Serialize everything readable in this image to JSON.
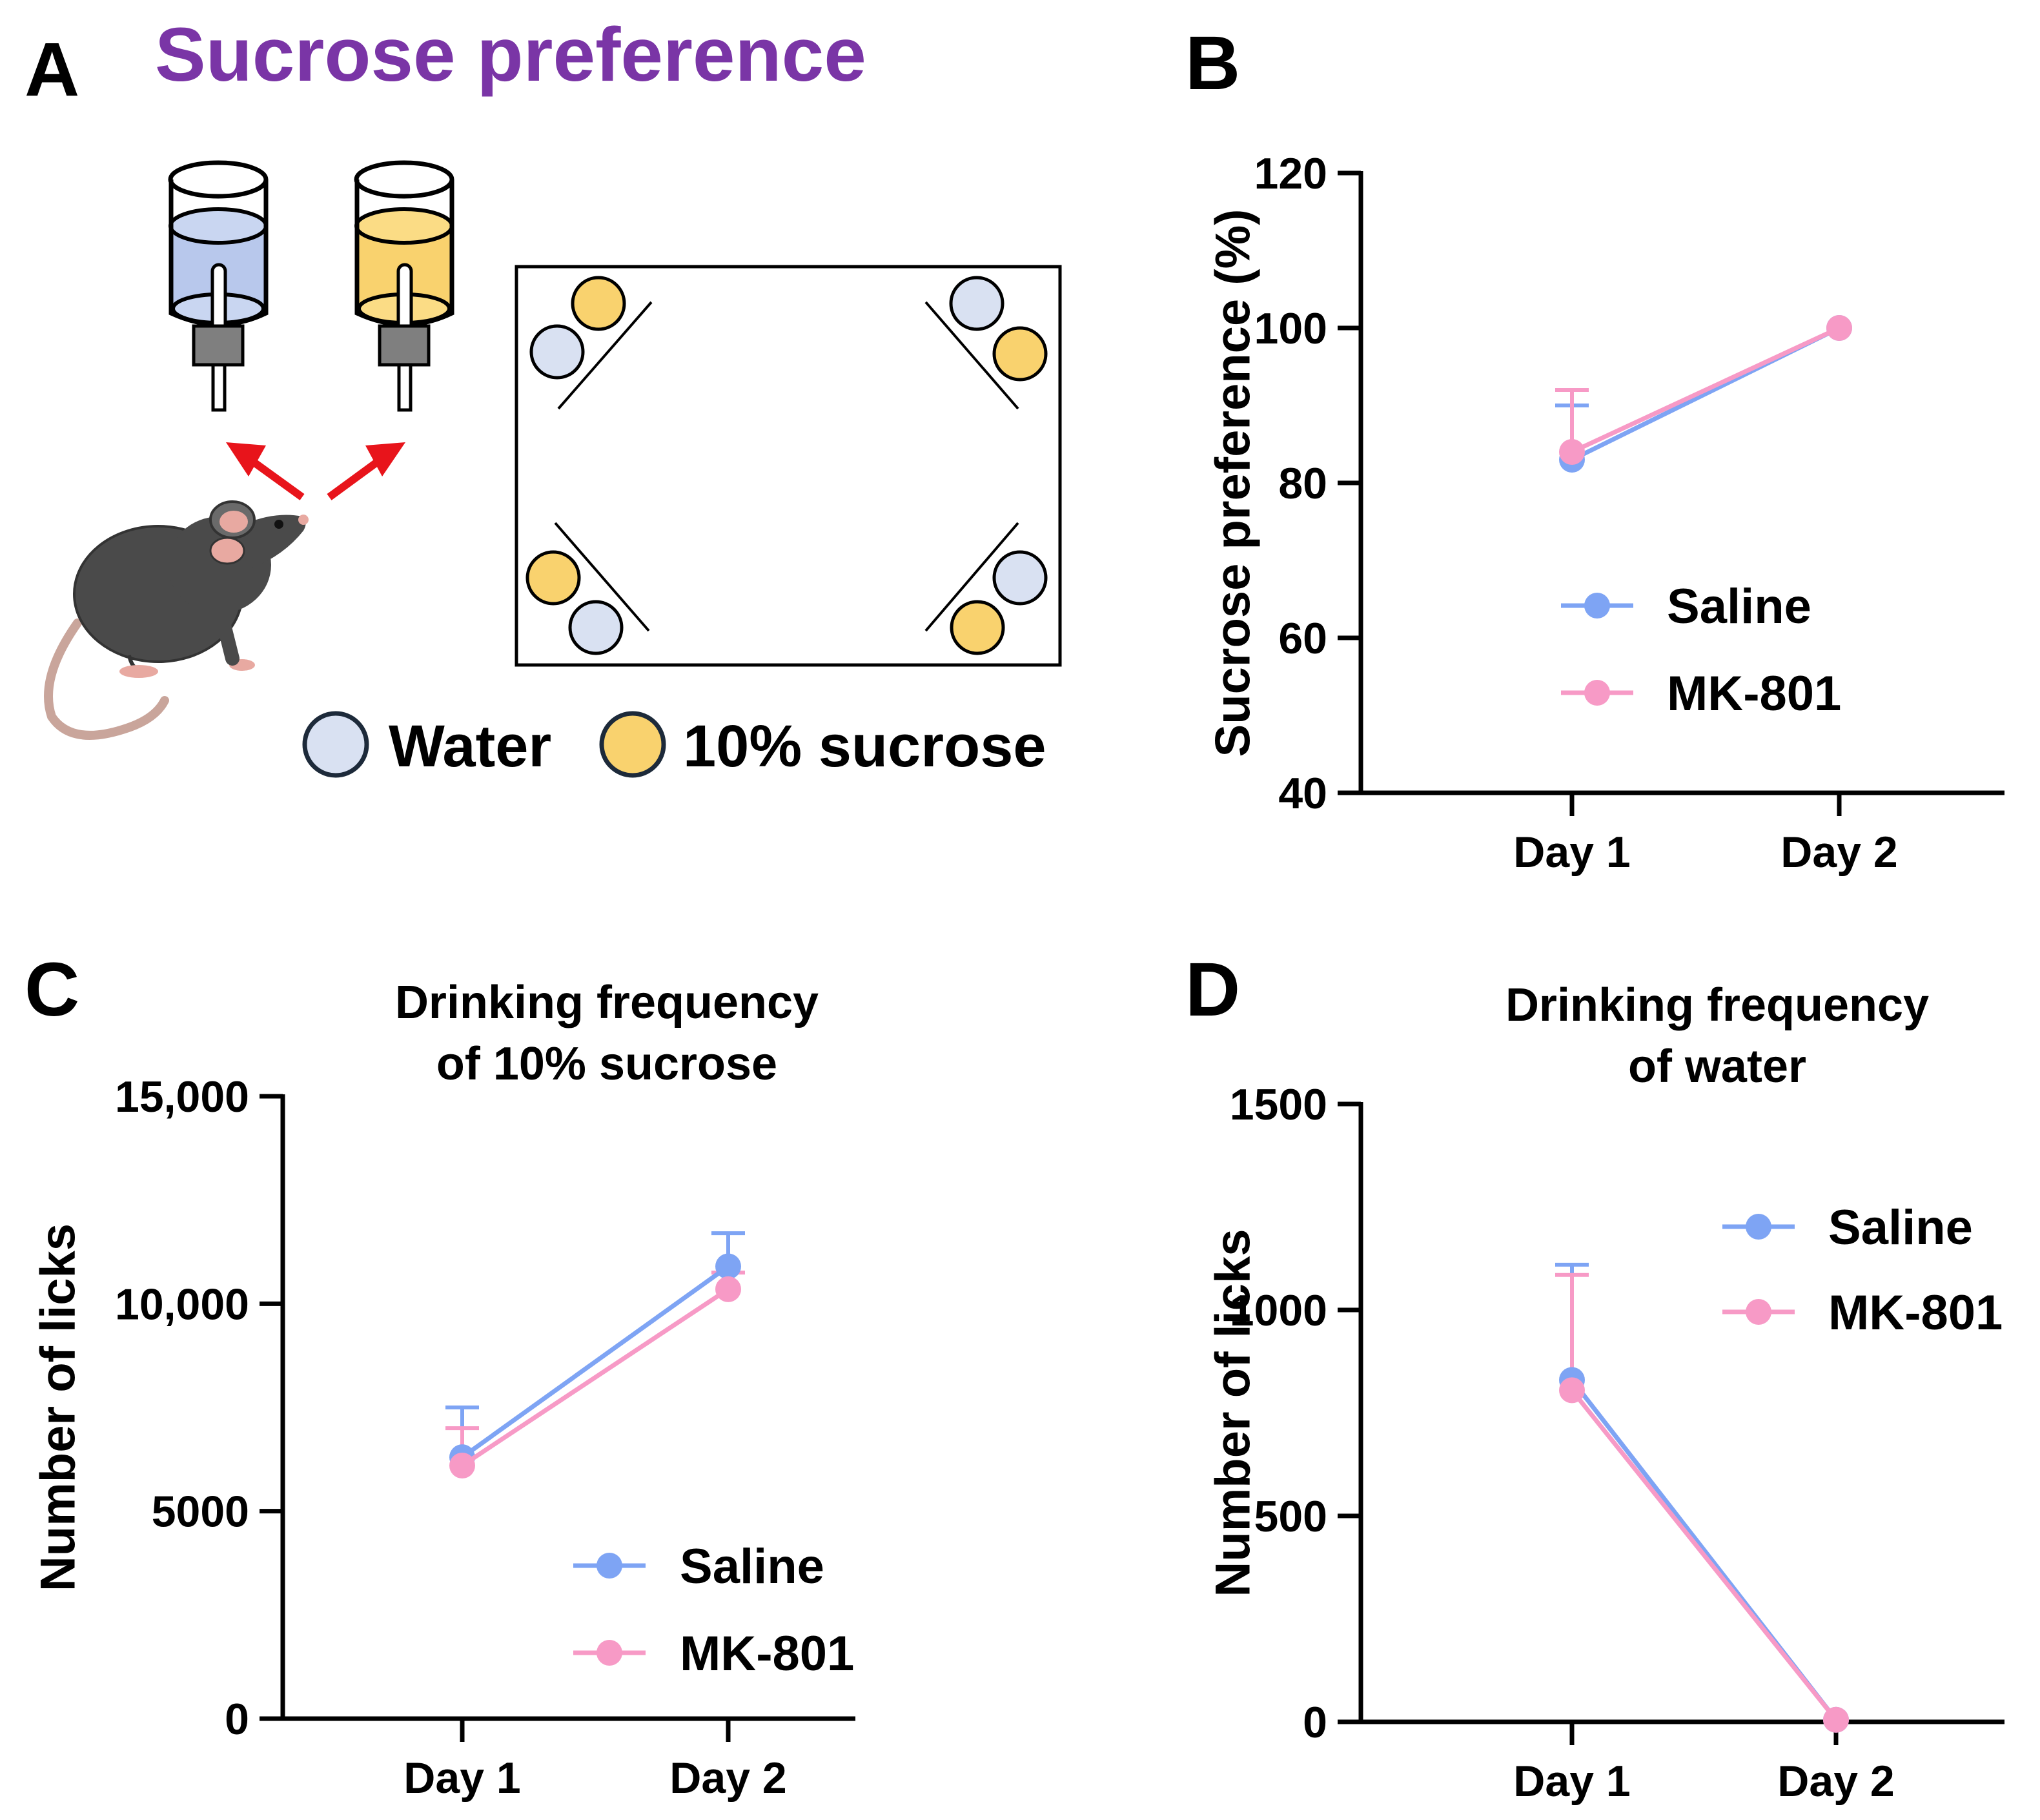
{
  "panels": {
    "a": {
      "letter": "A",
      "title": "Sucrose preference"
    },
    "b": {
      "letter": "B"
    },
    "c": {
      "letter": "C"
    },
    "d": {
      "letter": "D"
    }
  },
  "legend_a": {
    "water": "Water",
    "sucrose": "10% sucrose"
  },
  "colors": {
    "saline": "#7ea4f4",
    "mk801": "#f79ac6",
    "water_fill": "#d9e1f2",
    "sucrose_fill": "#f9d26e",
    "title_purple": "#7a35a6",
    "arrow": "#e8141b"
  },
  "chart_data": [
    {
      "id": "b",
      "type": "line",
      "title": "",
      "xlabel": "",
      "ylabel": "Sucrose preference (%)",
      "categories": [
        "Day 1",
        "Day 2"
      ],
      "ylim": [
        40,
        120
      ],
      "yticks": [
        40,
        60,
        80,
        100,
        120
      ],
      "ytick_labels": [
        "40",
        "60",
        "80",
        "100",
        "120"
      ],
      "legend": "center",
      "series": [
        {
          "name": "Saline",
          "values": [
            83,
            100
          ],
          "errors": [
            7,
            0
          ]
        },
        {
          "name": "MK-801",
          "values": [
            84,
            100
          ],
          "errors": [
            8,
            0
          ]
        }
      ]
    },
    {
      "id": "c",
      "type": "line",
      "title": "Drinking frequency of 10% sucrose",
      "title_lines": [
        "Drinking frequency",
        "of 10% sucrose"
      ],
      "xlabel": "",
      "ylabel": "Number of licks",
      "categories": [
        "Day 1",
        "Day 2"
      ],
      "ylim": [
        0,
        15000
      ],
      "yticks": [
        0,
        5000,
        10000,
        15000
      ],
      "ytick_labels": [
        "0",
        "5000",
        "10,000",
        "15,000"
      ],
      "legend": "bottom-right",
      "series": [
        {
          "name": "Saline",
          "values": [
            6300,
            10900
          ],
          "errors": [
            1200,
            800
          ]
        },
        {
          "name": "MK-801",
          "values": [
            6100,
            10350
          ],
          "errors": [
            900,
            400
          ]
        }
      ]
    },
    {
      "id": "d",
      "type": "line",
      "title": "Drinking frequency of water",
      "title_lines": [
        "Drinking frequency",
        "of water"
      ],
      "xlabel": "",
      "ylabel": "Number of licks",
      "categories": [
        "Day 1",
        "Day 2"
      ],
      "ylim": [
        0,
        1500
      ],
      "yticks": [
        0,
        500,
        1000,
        1500
      ],
      "ytick_labels": [
        "0",
        "500",
        "1000",
        "1500"
      ],
      "legend": "top-right",
      "series": [
        {
          "name": "Saline",
          "values": [
            830,
            5
          ],
          "errors": [
            280,
            0
          ]
        },
        {
          "name": "MK-801",
          "values": [
            805,
            5
          ],
          "errors": [
            280,
            0
          ]
        }
      ]
    }
  ]
}
